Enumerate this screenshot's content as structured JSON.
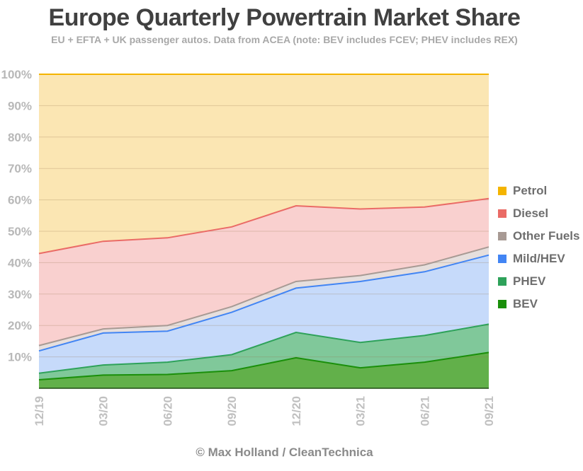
{
  "chart_data": {
    "type": "area",
    "stacked": true,
    "title": "Europe Quarterly Powertrain Market Share",
    "subtitle": "EU + EFTA + UK passenger autos. Data from ACEA (note: BEV includes FCEV; PHEV includes REX)",
    "footer": "© Max Holland / CleanTechnica",
    "xlabel": "",
    "ylabel": "",
    "ylim": [
      0,
      100
    ],
    "y_ticks": [
      "10%",
      "20%",
      "30%",
      "40%",
      "50%",
      "60%",
      "70%",
      "80%",
      "90%",
      "100%"
    ],
    "y_tick_values": [
      10,
      20,
      30,
      40,
      50,
      60,
      70,
      80,
      90,
      100
    ],
    "categories": [
      "12/19",
      "03/20",
      "06/20",
      "09/20",
      "12/20",
      "03/21",
      "06/21",
      "09/21"
    ],
    "grid": true,
    "legend_position": "right",
    "cumulative_note": "values are individual shares (%), stacked from BEV upward",
    "series": [
      {
        "name": "BEV",
        "color": "#1a8f0a",
        "fill": "#62b04a",
        "values": [
          2.7,
          4.2,
          4.4,
          5.6,
          9.7,
          6.5,
          8.3,
          11.4
        ]
      },
      {
        "name": "PHEV",
        "color": "#2ea25a",
        "fill": "#80c89a",
        "values": [
          2.1,
          3.2,
          3.9,
          5.1,
          8.1,
          8.1,
          8.5,
          9.0
        ]
      },
      {
        "name": "Mild/HEV",
        "color": "#4285f4",
        "fill": "#c6dafa",
        "values": [
          7.1,
          10.2,
          9.9,
          13.5,
          14.1,
          19.4,
          20.3,
          22.0
        ]
      },
      {
        "name": "Other Fuels",
        "color": "#a89a94",
        "fill": "#e6dfdd",
        "values": [
          1.7,
          1.3,
          1.8,
          1.8,
          2.1,
          1.9,
          2.2,
          2.6
        ]
      },
      {
        "name": "Diesel",
        "color": "#ea6b66",
        "fill": "#f9d0cf",
        "values": [
          29.3,
          27.9,
          27.9,
          25.4,
          24.1,
          21.2,
          18.4,
          15.4
        ]
      },
      {
        "name": "Petrol",
        "color": "#f4b400",
        "fill": "#fbe6b3",
        "values": [
          57.1,
          53.2,
          52.1,
          48.6,
          41.9,
          42.9,
          42.3,
          39.6
        ]
      }
    ]
  },
  "legend": [
    {
      "label": "Petrol",
      "color": "#f4b400"
    },
    {
      "label": "Diesel",
      "color": "#ea6b66"
    },
    {
      "label": "Other Fuels",
      "color": "#a89a94"
    },
    {
      "label": "Mild/HEV",
      "color": "#4285f4"
    },
    {
      "label": "PHEV",
      "color": "#2ea25a"
    },
    {
      "label": "BEV",
      "color": "#1a8f0a"
    }
  ]
}
